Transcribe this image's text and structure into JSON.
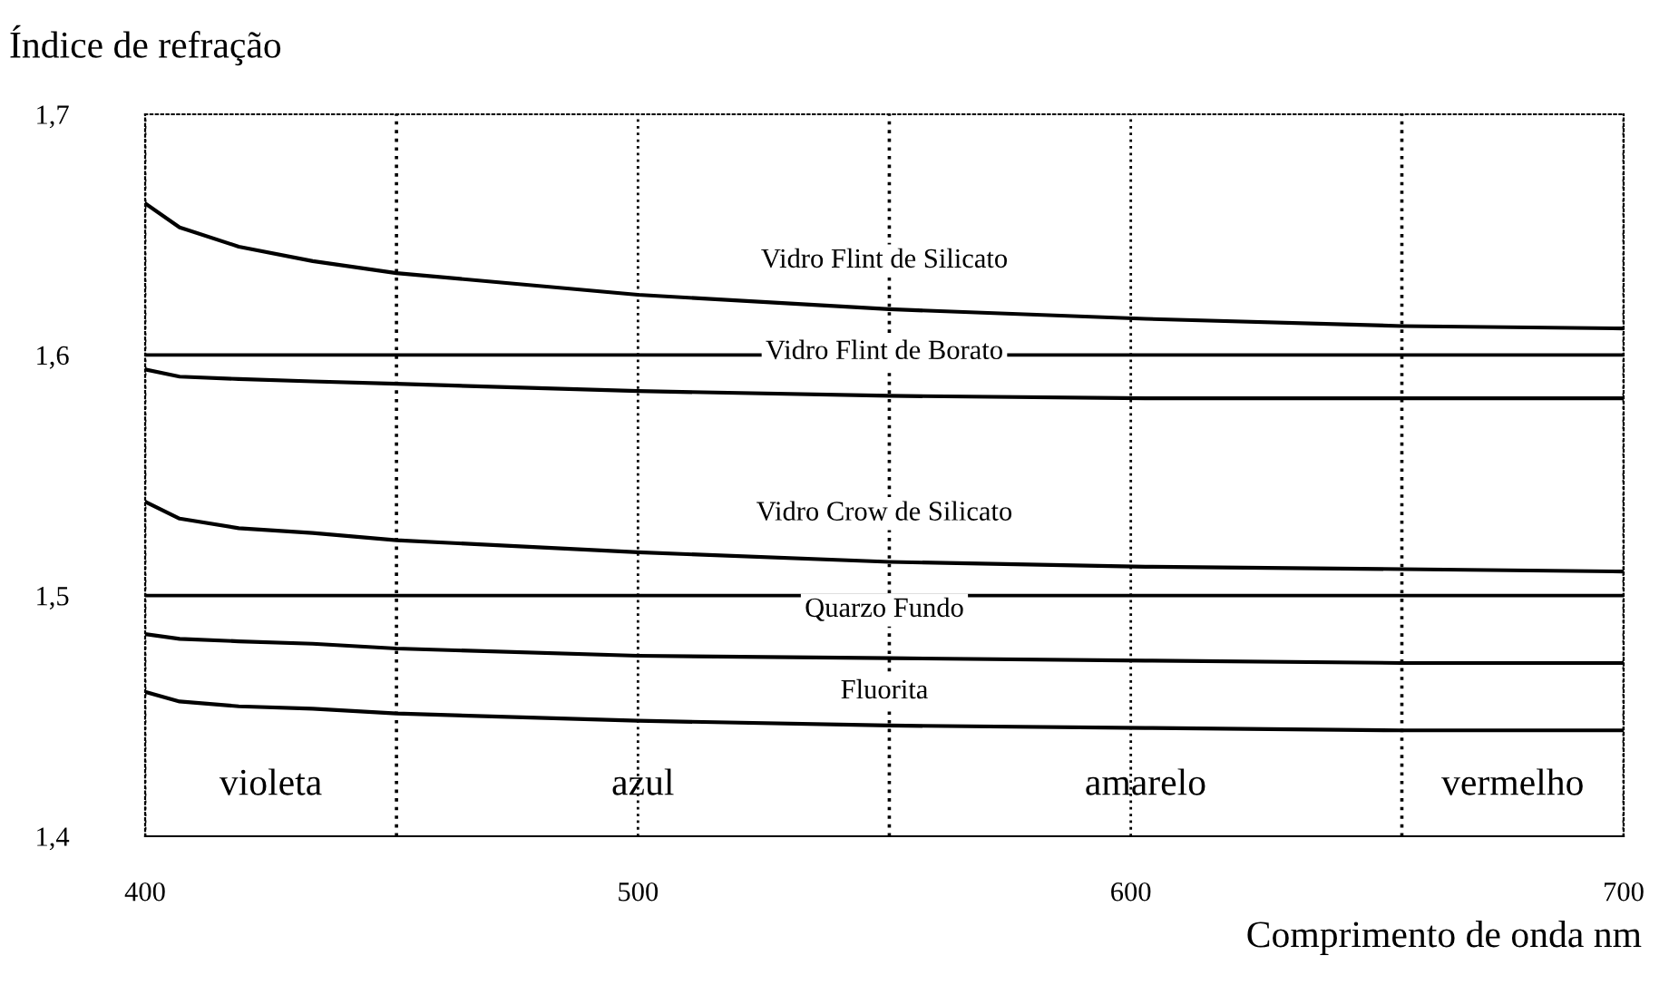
{
  "chart_data": {
    "type": "line",
    "xlabel": "Comprimento de onda nm",
    "ylabel": "Índice de refração",
    "x": [
      400,
      407,
      419,
      434,
      451,
      500,
      551,
      603,
      655,
      700
    ],
    "series": [
      {
        "name": "Vidro Flint de Silicato",
        "color": "#000000",
        "values": [
          1.663,
          1.653,
          1.645,
          1.639,
          1.634,
          1.625,
          1.619,
          1.615,
          1.612,
          1.611
        ]
      },
      {
        "name": "Vidro Flint de Borato",
        "color": "#000000",
        "values": [
          1.594,
          1.591,
          1.59,
          1.589,
          1.588,
          1.585,
          1.583,
          1.582,
          1.582,
          1.582
        ]
      },
      {
        "name": "Vidro Crow de Silicato",
        "color": "#000000",
        "values": [
          1.539,
          1.532,
          1.528,
          1.526,
          1.523,
          1.518,
          1.514,
          1.512,
          1.511,
          1.51
        ]
      },
      {
        "name": "Quarzo Fundo",
        "color": "#000000",
        "values": [
          1.484,
          1.482,
          1.481,
          1.48,
          1.478,
          1.475,
          1.474,
          1.473,
          1.472,
          1.472
        ]
      },
      {
        "name": "Fluorita",
        "color": "#000000",
        "values": [
          1.46,
          1.456,
          1.454,
          1.453,
          1.451,
          1.448,
          1.446,
          1.445,
          1.444,
          1.444
        ]
      }
    ],
    "xlim": [
      400,
      700
    ],
    "ylim": [
      1.4,
      1.7
    ],
    "xticks": [
      400,
      500,
      600,
      700
    ],
    "yticks": [
      {
        "value": 1.4,
        "label": "1,4"
      },
      {
        "value": 1.5,
        "label": "1,5"
      },
      {
        "value": 1.6,
        "label": "1,6"
      },
      {
        "value": 1.7,
        "label": "1,7"
      }
    ],
    "ref_lines": [
      {
        "axis": "y",
        "value": 1.6,
        "color": "#000000"
      },
      {
        "axis": "y",
        "value": 1.5,
        "color": "#000000"
      },
      {
        "axis": "x",
        "value": 451,
        "color": "#000000",
        "line_style": "dotted"
      },
      {
        "axis": "x",
        "value": 551,
        "color": "#000000",
        "line_style": "dotted"
      },
      {
        "axis": "x",
        "value": 655,
        "color": "#000000",
        "line_style": "dotted"
      }
    ],
    "annotations": [
      "violeta",
      "azul",
      "amarelo",
      "vermelho"
    ],
    "grid": "x",
    "legend": false,
    "marker": "none",
    "line_style": "solid"
  }
}
